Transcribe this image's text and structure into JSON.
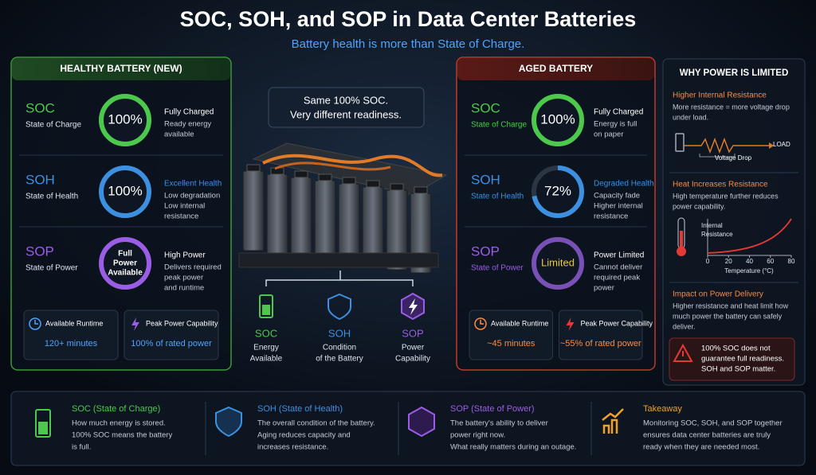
{
  "header": {
    "title": "SOC, SOH, and SOP in Data Center Batteries",
    "subtitle": "Battery health is more than State of Charge."
  },
  "healthy": {
    "title": "HEALTHY BATTERY (NEW)",
    "rows": [
      {
        "abbr": "SOC",
        "name": "State of Charge",
        "gauge": {
          "value": 100,
          "label": "100%"
        },
        "status": "Fully Charged",
        "detail": [
          "Ready energy",
          "available"
        ]
      },
      {
        "abbr": "SOH",
        "name": "State of Health",
        "gauge": {
          "value": 100,
          "label": "100%"
        },
        "status": "Excellent Health",
        "detail": [
          "Low degradation",
          "Low internal",
          "resistance"
        ]
      },
      {
        "abbr": "SOP",
        "name": "State of Power",
        "gauge": {
          "lines": [
            "Full",
            "Power",
            "Available"
          ]
        },
        "status": "High Power",
        "detail": [
          "Delivers required",
          "peak power",
          "and runtime"
        ]
      }
    ],
    "stats": [
      {
        "label": "Available Runtime",
        "value": "120+ minutes"
      },
      {
        "label": "Peak Power Capability",
        "value": "100% of rated power"
      }
    ]
  },
  "aged": {
    "title": "AGED BATTERY",
    "rows": [
      {
        "abbr": "SOC",
        "name": "State of Charge",
        "gauge": {
          "value": 100,
          "label": "100%"
        },
        "status": "Fully Charged",
        "detail": [
          "Energy is full",
          "on paper"
        ]
      },
      {
        "abbr": "SOH",
        "name": "State of Health",
        "gauge": {
          "value": 72,
          "label": "72%"
        },
        "status": "Degraded Health",
        "detail": [
          "Capacity fade",
          "Higher internal",
          "resistance"
        ]
      },
      {
        "abbr": "SOP",
        "name": "State of Power",
        "gauge": {
          "lines": [
            "Limited"
          ]
        },
        "status": "Power Limited",
        "detail": [
          "Cannot deliver",
          "required peak",
          "power"
        ]
      }
    ],
    "stats": [
      {
        "label": "Available Runtime",
        "value": "~45 minutes"
      },
      {
        "label": "Peak Power Capability",
        "value": "~55% of rated power"
      }
    ]
  },
  "center": {
    "callout": [
      "Same 100% SOC.",
      "Very different readiness."
    ],
    "items": [
      {
        "abbr": "SOC",
        "lines": [
          "Energy",
          "Available"
        ]
      },
      {
        "abbr": "SOH",
        "lines": [
          "Condition",
          "of the Battery"
        ]
      },
      {
        "abbr": "SOP",
        "lines": [
          "Power",
          "Capability"
        ]
      }
    ]
  },
  "sidebar": {
    "title": "WHY POWER IS LIMITED",
    "sections": [
      {
        "heading": "Higher Internal Resistance",
        "lines": [
          "More resistance = more voltage drop",
          "under load."
        ]
      },
      {
        "heading": "Heat Increases Resistance",
        "lines": [
          "High temperature further reduces",
          "power capability."
        ]
      },
      {
        "heading": "Impact on Power Delivery",
        "lines": [
          "Higher resistance and heat limit how",
          "much power the battery can safely",
          "deliver."
        ]
      }
    ],
    "diagram": {
      "load": "LOAD",
      "drop": "Voltage Drop"
    },
    "chart": {
      "y_label": [
        "Internal",
        "Resistance"
      ],
      "x_label": "Temperature (°C)",
      "xlim": [
        0,
        80
      ],
      "xticks": [
        0,
        20,
        40,
        60,
        80
      ]
    },
    "warning": [
      "100% SOC does not",
      "guarantee full readiness.",
      "SOH and SOP matter."
    ]
  },
  "footer": {
    "items": [
      {
        "title": "SOC (State of Charge)",
        "lines": [
          "How much energy is stored.",
          "100% SOC means the battery",
          "is full."
        ]
      },
      {
        "title": "SOH (State of Health)",
        "lines": [
          "The overall condition of the battery.",
          "Aging reduces capacity and",
          "increases resistance."
        ]
      },
      {
        "title": "SOP (State of Power)",
        "lines": [
          "The battery's ability to deliver",
          "power right now.",
          "What really matters during an outage."
        ]
      },
      {
        "title": "Takeaway",
        "lines": [
          "Monitoring SOC, SOH, and SOP together",
          "ensures data center batteries are truly",
          "ready when they are needed most."
        ]
      }
    ]
  }
}
